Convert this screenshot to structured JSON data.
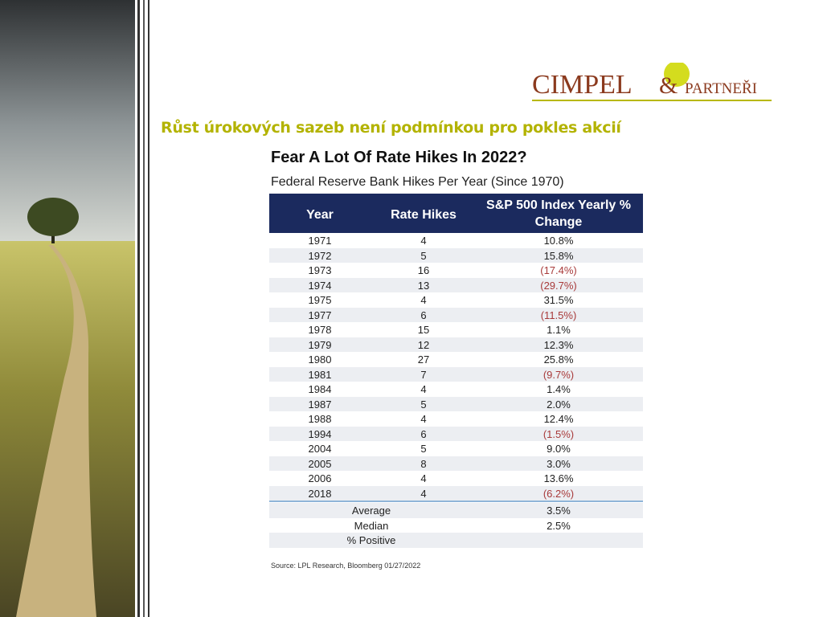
{
  "logo": {
    "name": "CIMPEL",
    "amp": "&",
    "suffix": "PARTNEŘI"
  },
  "heading": "Růst úrokových sazeb není podmínkou pro pokles akcií",
  "table": {
    "title": "Fear A Lot Of Rate Hikes In 2022?",
    "subtitle": "Federal Reserve Bank Hikes Per Year (Since 1970)",
    "headers": [
      "Year",
      "Rate Hikes",
      "S&P 500 Index Yearly % Change"
    ],
    "rows": [
      [
        "1971",
        "4",
        "10.8%"
      ],
      [
        "1972",
        "5",
        "15.8%"
      ],
      [
        "1973",
        "16",
        "(17.4%)"
      ],
      [
        "1974",
        "13",
        "(29.7%)"
      ],
      [
        "1975",
        "4",
        "31.5%"
      ],
      [
        "1977",
        "6",
        "(11.5%)"
      ],
      [
        "1978",
        "15",
        "1.1%"
      ],
      [
        "1979",
        "12",
        "12.3%"
      ],
      [
        "1980",
        "27",
        "25.8%"
      ],
      [
        "1981",
        "7",
        "(9.7%)"
      ],
      [
        "1984",
        "4",
        "1.4%"
      ],
      [
        "1987",
        "5",
        "2.0%"
      ],
      [
        "1988",
        "4",
        "12.4%"
      ],
      [
        "1994",
        "6",
        "(1.5%)"
      ],
      [
        "2004",
        "5",
        "9.0%"
      ],
      [
        "2005",
        "8",
        "3.0%"
      ],
      [
        "2006",
        "4",
        "13.6%"
      ],
      [
        "2018",
        "4",
        "(6.2%)"
      ]
    ],
    "summary": [
      {
        "label": "Average",
        "value": "3.5%"
      },
      {
        "label": "Median",
        "value": "2.5%"
      },
      {
        "label": "% Positive"
      }
    ],
    "source": "Source: LPL Research, Bloomberg 01/27/2022"
  }
}
